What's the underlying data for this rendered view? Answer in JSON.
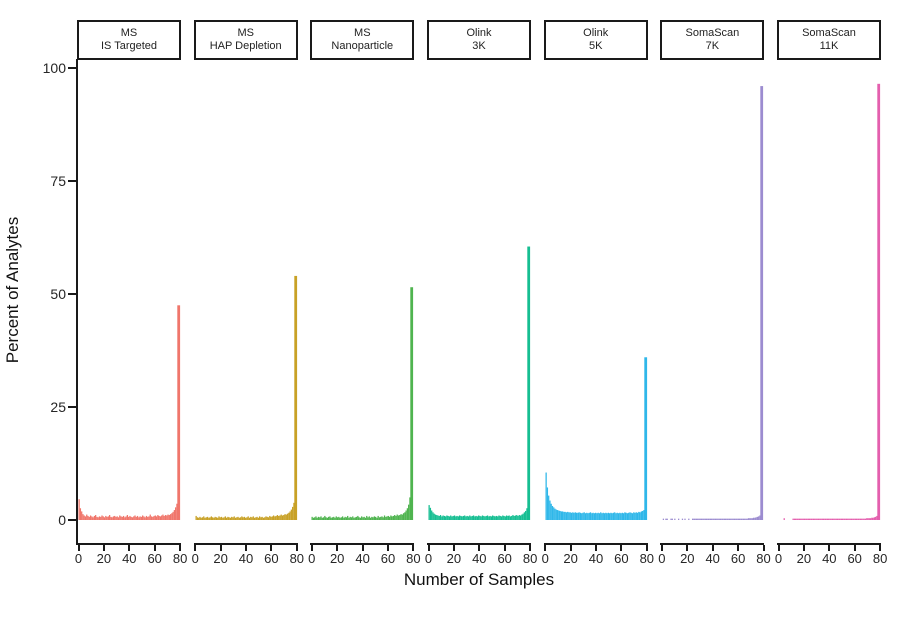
{
  "chart_data": {
    "type": "bar",
    "subtype": "faceted-histogram",
    "title": "",
    "xlabel": "Number of Samples",
    "ylabel": "Percent of Analytes",
    "xlim": [
      0,
      80
    ],
    "ylim": [
      0,
      100
    ],
    "x_ticks": [
      0,
      20,
      40,
      60,
      80
    ],
    "y_ticks": [
      0,
      25,
      50,
      75,
      100
    ],
    "grid": false,
    "legend_position": "none",
    "axis_color": "#1a1a1a",
    "strip_border_color": "#1a1a1a",
    "facets": [
      {
        "label": [
          "MS",
          "IS Targeted"
        ],
        "color": "#F0766B",
        "peak_at_80_percent": 47.5,
        "bins_percent": [
          4.6,
          2.6,
          1.9,
          1.3,
          1.0,
          0.8,
          1.2,
          0.9,
          0.7,
          1.0,
          0.8,
          0.6,
          0.9,
          1.1,
          0.7,
          0.6,
          0.8,
          0.7,
          1.0,
          0.8,
          0.6,
          0.9,
          0.7,
          0.8,
          1.1,
          0.7,
          0.6,
          0.8,
          0.9,
          0.7,
          0.8,
          0.6,
          1.0,
          0.8,
          0.7,
          0.9,
          0.6,
          0.8,
          1.1,
          0.7,
          0.9,
          0.7,
          0.6,
          0.8,
          1.0,
          0.7,
          0.9,
          0.6,
          0.8,
          0.7,
          1.0,
          0.8,
          0.6,
          0.9,
          0.7,
          0.8,
          1.2,
          0.8,
          0.7,
          0.9,
          1.0,
          0.8,
          1.1,
          0.9,
          0.8,
          1.0,
          1.2,
          0.9,
          1.1,
          1.0,
          1.2,
          1.1,
          1.3,
          1.5,
          1.8,
          2.2,
          2.8,
          3.6,
          6.0,
          47.5
        ]
      },
      {
        "label": [
          "MS",
          "HAP Depletion"
        ],
        "color": "#C8A126",
        "peak_at_80_percent": 54,
        "bins_percent": [
          0.9,
          0.6,
          0.5,
          0.7,
          0.5,
          0.6,
          0.8,
          0.5,
          0.6,
          0.7,
          0.5,
          0.6,
          0.8,
          0.6,
          0.5,
          0.7,
          0.6,
          0.5,
          0.8,
          0.6,
          0.7,
          0.5,
          0.6,
          0.8,
          0.5,
          0.7,
          0.6,
          0.5,
          0.7,
          0.6,
          0.8,
          0.5,
          0.6,
          0.7,
          0.5,
          0.6,
          0.8,
          0.6,
          0.7,
          0.5,
          0.6,
          0.8,
          0.5,
          0.7,
          0.6,
          0.8,
          0.5,
          0.6,
          0.7,
          0.5,
          0.8,
          0.6,
          0.7,
          0.5,
          0.6,
          0.8,
          0.7,
          0.6,
          0.9,
          0.7,
          0.8,
          1.0,
          0.8,
          0.9,
          1.1,
          0.9,
          1.0,
          1.2,
          1.0,
          1.1,
          1.3,
          1.2,
          1.4,
          1.6,
          1.9,
          2.3,
          2.9,
          3.8,
          6.5,
          54
        ]
      },
      {
        "label": [
          "MS",
          "Nanoparticle"
        ],
        "color": "#4FB44F",
        "peak_at_80_percent": 51.5,
        "bins_percent": [
          0.7,
          0.5,
          0.6,
          0.8,
          0.5,
          0.7,
          0.6,
          0.8,
          0.5,
          0.6,
          0.9,
          0.6,
          0.5,
          0.7,
          0.8,
          0.5,
          0.6,
          0.7,
          0.5,
          0.8,
          0.6,
          0.7,
          0.5,
          0.6,
          0.8,
          0.5,
          0.7,
          0.6,
          0.9,
          0.5,
          0.7,
          0.6,
          0.8,
          0.5,
          0.6,
          0.7,
          0.9,
          0.6,
          0.5,
          0.8,
          0.6,
          0.7,
          0.5,
          0.9,
          0.6,
          0.8,
          0.5,
          0.7,
          0.6,
          0.8,
          0.7,
          0.5,
          0.9,
          0.6,
          0.7,
          0.8,
          0.6,
          1.0,
          0.7,
          0.8,
          0.9,
          0.7,
          1.0,
          0.8,
          0.9,
          1.1,
          0.9,
          1.2,
          1.0,
          1.1,
          1.3,
          1.2,
          1.5,
          1.7,
          2.1,
          2.6,
          3.4,
          5.0,
          9.5,
          51.5
        ]
      },
      {
        "label": [
          "Olink",
          "3K"
        ],
        "color": "#16BE92",
        "peak_at_80_percent": 60.5,
        "bins_percent": [
          3.3,
          2.7,
          2.1,
          1.7,
          1.4,
          1.2,
          1.1,
          1.0,
          0.9,
          1.1,
          0.8,
          1.0,
          0.9,
          0.8,
          1.0,
          0.9,
          0.8,
          1.0,
          0.8,
          0.9,
          1.0,
          0.8,
          0.9,
          0.8,
          1.0,
          0.9,
          0.8,
          0.9,
          1.0,
          0.8,
          0.9,
          0.8,
          1.0,
          0.8,
          0.9,
          1.0,
          0.8,
          0.9,
          0.8,
          1.0,
          0.9,
          0.8,
          1.0,
          0.9,
          0.8,
          0.9,
          1.0,
          0.8,
          0.9,
          0.8,
          1.0,
          0.9,
          0.8,
          0.9,
          0.8,
          1.0,
          0.9,
          0.8,
          1.0,
          0.9,
          0.8,
          1.0,
          0.9,
          1.0,
          0.8,
          0.9,
          1.1,
          0.9,
          1.0,
          1.1,
          0.9,
          1.1,
          1.0,
          1.2,
          1.4,
          1.7,
          2.0,
          2.6,
          4.0,
          60.5
        ]
      },
      {
        "label": [
          "Olink",
          "5K"
        ],
        "color": "#2FB7E9",
        "peak_at_80_percent": 36,
        "bins_percent": [
          10.5,
          7.2,
          5.4,
          4.3,
          3.6,
          3.1,
          2.8,
          2.5,
          2.3,
          2.2,
          2.1,
          2.0,
          1.9,
          1.9,
          1.8,
          1.8,
          1.7,
          1.8,
          1.7,
          1.7,
          1.6,
          1.7,
          1.6,
          1.7,
          1.6,
          1.6,
          1.7,
          1.6,
          1.5,
          1.6,
          1.7,
          1.5,
          1.6,
          1.5,
          1.6,
          1.7,
          1.5,
          1.6,
          1.5,
          1.6,
          1.5,
          1.6,
          1.5,
          1.7,
          1.5,
          1.6,
          1.5,
          1.6,
          1.5,
          1.6,
          1.5,
          1.6,
          1.5,
          1.6,
          1.7,
          1.5,
          1.6,
          1.5,
          1.6,
          1.5,
          1.6,
          1.5,
          1.7,
          1.6,
          1.5,
          1.6,
          1.7,
          1.6,
          1.5,
          1.7,
          1.6,
          1.7,
          1.6,
          1.8,
          1.7,
          1.9,
          2.0,
          2.2,
          2.8,
          36
        ]
      },
      {
        "label": [
          "SomaScan",
          "7K"
        ],
        "color": "#9C8CD0",
        "peak_at_80_percent": 96,
        "bins_percent": [
          0,
          0.3,
          0,
          0.3,
          0.3,
          0,
          0,
          0.3,
          0.3,
          0,
          0.3,
          0,
          0,
          0.3,
          0,
          0,
          0.3,
          0,
          0.3,
          0,
          0,
          0.3,
          0,
          0,
          0.3,
          0.3,
          0.3,
          0.3,
          0.3,
          0.3,
          0.3,
          0.3,
          0.3,
          0.3,
          0.3,
          0.3,
          0.3,
          0.3,
          0.3,
          0.3,
          0.3,
          0.3,
          0.3,
          0.3,
          0.3,
          0.3,
          0.3,
          0.3,
          0.3,
          0.3,
          0.3,
          0.3,
          0.3,
          0.3,
          0.3,
          0.3,
          0.3,
          0.3,
          0.3,
          0.3,
          0.3,
          0.3,
          0.3,
          0.3,
          0.3,
          0.3,
          0.3,
          0.3,
          0.4,
          0.4,
          0.4,
          0.4,
          0.5,
          0.5,
          0.6,
          0.7,
          0.8,
          1.0,
          1.6,
          96
        ]
      },
      {
        "label": [
          "SomaScan",
          "11K"
        ],
        "color": "#E45FAE",
        "peak_at_80_percent": 96.5,
        "bins_percent": [
          0,
          0,
          0,
          0,
          0.4,
          0,
          0,
          0,
          0,
          0,
          0,
          0.3,
          0.3,
          0.3,
          0.3,
          0.3,
          0.3,
          0.3,
          0.3,
          0.3,
          0.3,
          0.3,
          0.3,
          0.3,
          0.3,
          0.3,
          0.3,
          0.3,
          0.3,
          0.3,
          0.3,
          0.3,
          0.3,
          0.3,
          0.3,
          0.3,
          0.3,
          0.3,
          0.3,
          0.3,
          0.3,
          0.3,
          0.3,
          0.3,
          0.3,
          0.3,
          0.3,
          0.3,
          0.3,
          0.3,
          0.3,
          0.3,
          0.3,
          0.3,
          0.3,
          0.3,
          0.3,
          0.3,
          0.3,
          0.3,
          0.3,
          0.3,
          0.3,
          0.3,
          0.3,
          0.3,
          0.3,
          0.3,
          0.3,
          0.4,
          0.4,
          0.4,
          0.4,
          0.5,
          0.5,
          0.6,
          0.7,
          0.9,
          1.4,
          96.5
        ]
      }
    ]
  }
}
